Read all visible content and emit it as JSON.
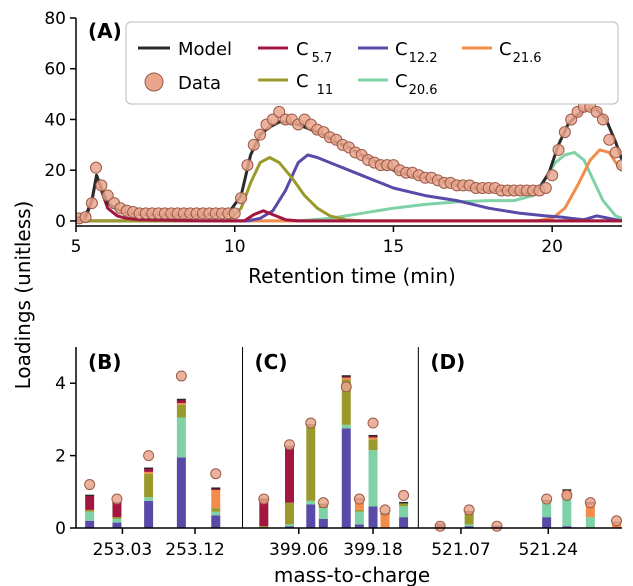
{
  "figure": {
    "ylabel": "Loadings (unitless)",
    "colors": {
      "model": "#2b2b2b",
      "data_fill": "#e8a58c",
      "data_edge": "#9c5a48",
      "c57": "#a3163f",
      "c11": "#9a9a2c",
      "c122": "#5a4aa8",
      "c206": "#7fd1a6",
      "c216": "#f28c4a"
    }
  },
  "chart_data": [
    {
      "panel": "A",
      "label": "(A)",
      "type": "line",
      "xlabel": "Retention time (min)",
      "ylabel": "Loadings (unitless)",
      "xlim": [
        5,
        22.2
      ],
      "ylim": [
        -2,
        80
      ],
      "xticks": [
        5,
        10,
        15,
        20
      ],
      "yticks": [
        0,
        20,
        40,
        60,
        80
      ],
      "legend": {
        "model": "Model",
        "data": "Data",
        "c57": {
          "base": "C",
          "sub": "5.7"
        },
        "c11": {
          "base": "C",
          "sub": "11"
        },
        "c122": {
          "base": "C",
          "sub": "12.2"
        },
        "c206": {
          "base": "C",
          "sub": "20.6"
        },
        "c216": {
          "base": "C",
          "sub": "21.6"
        }
      },
      "series": [
        {
          "key": "model",
          "x": [
            5,
            5.3,
            5.5,
            5.65,
            5.8,
            6,
            6.3,
            6.6,
            7,
            8,
            9,
            9.8,
            10.2,
            10.5,
            10.8,
            11.1,
            11.4,
            11.7,
            12,
            12.4,
            12.8,
            13.2,
            13.6,
            14,
            14.5,
            15,
            15.5,
            16,
            16.5,
            17,
            17.5,
            18,
            18.5,
            19,
            19.3,
            19.6,
            19.9,
            20.2,
            20.5,
            20.8,
            21.1,
            21.4,
            21.7,
            22,
            22.2
          ],
          "y": [
            1,
            2,
            8,
            18,
            13,
            7,
            4.5,
            3,
            2.5,
            2.2,
            2.2,
            3,
            10,
            26,
            34,
            37,
            39,
            39,
            38,
            36,
            34,
            31,
            29,
            26,
            23,
            20,
            18,
            17,
            16,
            14,
            13,
            12,
            12,
            11,
            11,
            13,
            19,
            30,
            38,
            42,
            44,
            44,
            40,
            31,
            24
          ]
        },
        {
          "key": "c57",
          "x": [
            5,
            5.3,
            5.5,
            5.65,
            5.8,
            6,
            6.3,
            6.6,
            7,
            9,
            10.3,
            10.6,
            10.9,
            11.2,
            11.6,
            12,
            22.2
          ],
          "y": [
            0,
            1,
            8,
            18,
            12,
            5,
            2,
            1,
            0.5,
            0,
            0,
            2.5,
            4,
            2.5,
            0.5,
            0,
            0
          ]
        },
        {
          "key": "c11",
          "x": [
            5,
            9.8,
            10.2,
            10.5,
            10.8,
            11.1,
            11.4,
            11.8,
            12.2,
            12.6,
            13,
            13.5,
            14,
            22.2
          ],
          "y": [
            0,
            0,
            5,
            15,
            23,
            25,
            23,
            17,
            10,
            5,
            2,
            0.5,
            0,
            0
          ]
        },
        {
          "key": "c122",
          "x": [
            5,
            10.4,
            10.8,
            11.2,
            11.6,
            12,
            12.3,
            12.6,
            13,
            14,
            15,
            16,
            17,
            18,
            19,
            19.8,
            20.3,
            20.6,
            21,
            21.4,
            22.2
          ],
          "y": [
            0,
            0,
            1,
            4,
            12,
            23,
            26,
            25,
            23,
            18,
            13,
            10,
            8,
            5,
            3,
            2,
            1.5,
            1,
            0.5,
            2,
            0
          ]
        },
        {
          "key": "c206",
          "x": [
            5,
            12,
            13,
            14,
            15,
            16,
            17,
            18,
            18.8,
            19.4,
            19.8,
            20.1,
            20.4,
            20.7,
            21,
            21.3,
            21.6,
            22,
            22.2
          ],
          "y": [
            0,
            0,
            1,
            3,
            5,
            6.5,
            7.5,
            8,
            8,
            10,
            17,
            23,
            26,
            27,
            24,
            16,
            8,
            2,
            1
          ]
        },
        {
          "key": "c216",
          "x": [
            5,
            19.5,
            20,
            20.4,
            20.8,
            21.2,
            21.5,
            21.8,
            22,
            22.2
          ],
          "y": [
            0,
            0,
            1,
            5,
            14,
            24,
            28,
            27,
            23,
            20
          ]
        },
        {
          "key": "data",
          "type": "scatter",
          "x": [
            5.1,
            5.3,
            5.5,
            5.63,
            5.8,
            6,
            6.2,
            6.4,
            6.6,
            6.8,
            7,
            7.2,
            7.4,
            7.6,
            7.8,
            8,
            8.2,
            8.4,
            8.6,
            8.8,
            9,
            9.2,
            9.4,
            9.6,
            9.8,
            10,
            10.2,
            10.4,
            10.6,
            10.8,
            11,
            11.2,
            11.4,
            11.6,
            11.8,
            12,
            12.2,
            12.4,
            12.6,
            12.8,
            13,
            13.2,
            13.4,
            13.6,
            13.8,
            14,
            14.2,
            14.4,
            14.6,
            14.8,
            15,
            15.2,
            15.4,
            15.6,
            15.8,
            16,
            16.2,
            16.4,
            16.6,
            16.8,
            17,
            17.2,
            17.4,
            17.6,
            17.8,
            18,
            18.2,
            18.4,
            18.6,
            18.8,
            19,
            19.2,
            19.4,
            19.6,
            19.8,
            20,
            20.2,
            20.4,
            20.6,
            20.8,
            21,
            21.2,
            21.4,
            21.6,
            21.8,
            22,
            22.2
          ],
          "y": [
            1,
            1.5,
            7,
            21,
            14,
            10,
            7,
            5,
            4,
            3.5,
            3,
            3,
            3,
            3,
            3,
            3,
            3,
            3,
            3,
            3,
            3,
            3,
            3,
            3,
            3,
            3,
            9,
            22,
            30,
            34,
            38,
            40,
            43,
            40,
            40,
            38,
            40,
            38,
            36,
            35,
            33,
            32,
            30,
            29,
            27,
            26,
            24,
            23,
            22,
            22,
            22,
            20,
            19,
            19,
            18,
            17,
            17,
            16,
            15,
            15,
            14,
            14,
            14,
            13,
            13,
            13,
            13,
            12,
            12,
            12,
            12,
            12,
            12,
            12,
            13,
            18,
            28,
            35,
            40,
            43,
            45,
            45,
            43,
            40,
            32,
            27,
            22
          ]
        }
      ]
    },
    {
      "panel": "B-D",
      "type": "bar",
      "stacked": true,
      "xlabel": "mass-to-charge",
      "ylim": [
        0,
        5
      ],
      "yticks": [
        0,
        2,
        4
      ],
      "xlim": [
        0,
        100
      ],
      "subpanels": [
        {
          "label": "(B)",
          "x_start": 0,
          "x_end": 30.5
        },
        {
          "label": "(C)",
          "x_start": 30.5,
          "x_end": 62.7
        },
        {
          "label": "(D)",
          "x_start": 62.7,
          "x_end": 100
        }
      ],
      "tick_labels": [
        {
          "text": "253.03",
          "x": 8.5
        },
        {
          "text": "253.12",
          "x": 21.8
        },
        {
          "text": "399.06",
          "x": 40.8
        },
        {
          "text": "399.18",
          "x": 54.4
        },
        {
          "text": "521.07",
          "x": 70.5
        },
        {
          "text": "521.24",
          "x": 86.5
        }
      ],
      "stack_order": [
        "c122",
        "c206",
        "c11",
        "c216",
        "c57"
      ],
      "bars": [
        {
          "x": 2.5,
          "c122": 0.2,
          "c206": 0.25,
          "c11": 0.05,
          "c216": 0.0,
          "c57": 0.4,
          "data": 1.2
        },
        {
          "x": 7.5,
          "c122": 0.15,
          "c206": 0.1,
          "c11": 0.05,
          "c216": 0.0,
          "c57": 0.4,
          "data": 0.8
        },
        {
          "x": 13.3,
          "c122": 0.75,
          "c206": 0.1,
          "c11": 0.65,
          "c216": 0.05,
          "c57": 0.1,
          "data": 2.0
        },
        {
          "x": 19.3,
          "c122": 1.95,
          "c206": 1.1,
          "c11": 0.35,
          "c216": 0.05,
          "c57": 0.1,
          "data": 4.2
        },
        {
          "x": 25.6,
          "c122": 0.35,
          "c206": 0.1,
          "c11": 0.1,
          "c216": 0.5,
          "c57": 0.05,
          "data": 1.5
        },
        {
          "x": 34.4,
          "c122": 0.0,
          "c206": 0.0,
          "c11": 0.05,
          "c216": 0.0,
          "c57": 0.75,
          "data": 0.8
        },
        {
          "x": 39.1,
          "c122": 0.05,
          "c206": 0.05,
          "c11": 0.6,
          "c216": 0.0,
          "c57": 1.55,
          "data": 2.3
        },
        {
          "x": 43.0,
          "c122": 0.65,
          "c206": 0.1,
          "c11": 2.1,
          "c216": 0.0,
          "c57": 0.0,
          "data": 2.9
        },
        {
          "x": 45.3,
          "c122": 0.25,
          "c206": 0.3,
          "c11": 0.1,
          "c216": 0.0,
          "c57": 0.0,
          "data": 0.7
        },
        {
          "x": 49.5,
          "c122": 2.75,
          "c206": 0.1,
          "c11": 1.25,
          "c216": 0.05,
          "c57": 0.05,
          "data": 3.9
        },
        {
          "x": 51.9,
          "c122": 0.1,
          "c206": 0.35,
          "c11": 0.05,
          "c216": 0.3,
          "c57": 0.0,
          "data": 0.8
        },
        {
          "x": 54.4,
          "c122": 0.6,
          "c206": 1.55,
          "c11": 0.3,
          "c216": 0.05,
          "c57": 0.05,
          "data": 2.9
        },
        {
          "x": 56.6,
          "c122": 0.0,
          "c206": 0.0,
          "c11": 0.0,
          "c216": 0.4,
          "c57": 0.0,
          "data": 0.5
        },
        {
          "x": 60.0,
          "c122": 0.3,
          "c206": 0.3,
          "c11": 0.1,
          "c216": 0.0,
          "c57": 0.0,
          "data": 0.9
        },
        {
          "x": 66.7,
          "c122": 0.0,
          "c206": 0.0,
          "c11": 0.0,
          "c216": 0.0,
          "c57": 0.1,
          "data": 0.05
        },
        {
          "x": 72.0,
          "c122": 0.05,
          "c206": 0.05,
          "c11": 0.3,
          "c216": 0.0,
          "c57": 0.05,
          "data": 0.5
        },
        {
          "x": 77.1,
          "c122": 0.0,
          "c206": 0.0,
          "c11": 0.0,
          "c216": 0.0,
          "c57": 0.05,
          "data": 0.05
        },
        {
          "x": 86.2,
          "c122": 0.3,
          "c206": 0.4,
          "c11": 0.05,
          "c216": 0.0,
          "c57": 0.0,
          "data": 0.8
        },
        {
          "x": 89.9,
          "c122": 0.05,
          "c206": 0.75,
          "c11": 0.05,
          "c216": 0.2,
          "c57": 0.0,
          "data": 0.9
        },
        {
          "x": 94.2,
          "c122": 0.0,
          "c206": 0.3,
          "c11": 0.0,
          "c216": 0.35,
          "c57": 0.05,
          "data": 0.7
        },
        {
          "x": 99.0,
          "c122": 0.0,
          "c206": 0.0,
          "c11": 0.0,
          "c216": 0.15,
          "c57": 0.0,
          "data": 0.2
        }
      ]
    }
  ]
}
